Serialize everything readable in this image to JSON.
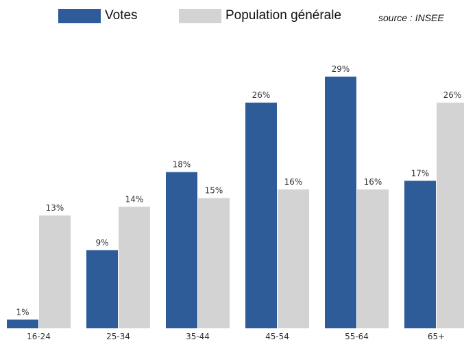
{
  "legend": [
    {
      "label": "Votes",
      "color": "#2d5c99"
    },
    {
      "label": "Population générale",
      "color": "#d3d3d3"
    }
  ],
  "source": "source : INSEE",
  "chart_data": {
    "type": "bar",
    "title": "",
    "xlabel": "",
    "ylabel": "",
    "categories": [
      "16-24",
      "25-34",
      "35-44",
      "45-54",
      "55-64",
      "65+"
    ],
    "series": [
      {
        "name": "Votes",
        "color": "#2d5c99",
        "values": [
          1,
          9,
          18,
          26,
          29,
          17
        ],
        "labels": [
          "1%",
          "9%",
          "18%",
          "26%",
          "29%",
          "17%"
        ]
      },
      {
        "name": "Population générale",
        "color": "#d3d3d3",
        "values": [
          13,
          14,
          15,
          16,
          16,
          26
        ],
        "labels": [
          "13%",
          "14%",
          "15%",
          "16%",
          "16%",
          "26%"
        ]
      }
    ],
    "ylim": [
      0,
      29
    ],
    "grid": false,
    "legend_position": "top"
  }
}
